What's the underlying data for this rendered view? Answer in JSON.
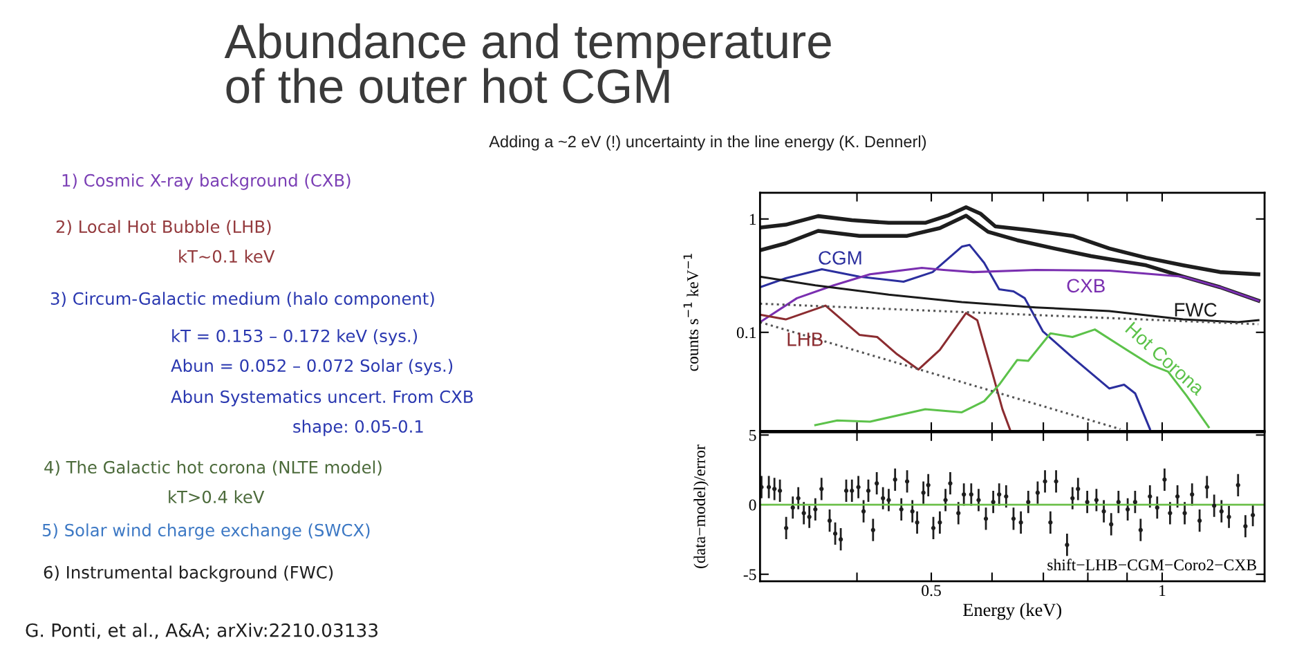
{
  "chart_data": [
    {
      "type": "line",
      "title": "Abundance and temperature\nof the outer hot CGM",
      "subtitle": "Adding a ~2 eV (!) uncertainty in the line energy (K. Dennerl)",
      "ylabel": "counts s$^{−1}$ keV$^{−1}$",
      "log": "xy",
      "xlim": [
        0.299,
        1.36
      ],
      "ylim": [
        0.0135,
        1.7
      ],
      "xticks": [
        {
          "value": 0.4,
          "label": null
        },
        0.5,
        {
          "value": 0.6,
          "label": null
        },
        {
          "value": 0.7,
          "label": null
        },
        {
          "value": 0.8,
          "label": null
        },
        {
          "value": 0.9,
          "label": null
        },
        1
      ],
      "yticks": [
        0.1,
        1
      ],
      "tick_labels": "y",
      "annotations": [
        "1) Cosmic X-ray background (CXB)",
        "2) Local Hot Bubble (LHB)",
        "kT~0.1 keV",
        "3) Circum-Galactic medium (halo component)",
        "kT = 0.153 – 0.172 keV (sys.)",
        "Abun = 0.052 – 0.072 Solar (sys.)",
        "Abun Systematics uncert. From CXB",
        "shape: 0.05-0.1",
        "4) The Galactic hot corona (NLTE model)",
        "kT>0.4 keV",
        "5) Solar wind charge exchange (SWCX)",
        "6) Instrumental background (FWC)",
        "G. Ponti, et al., A&A; arXiv:2210.03133"
      ],
      "series": [
        {
          "color": "#1e1e1e",
          "x": [
            0.299,
            0.323,
            0.356,
            0.394,
            0.44,
            0.491,
            0.525,
            0.555,
            0.58,
            0.606,
            0.669,
            0.764,
            0.853,
            0.953,
            1.065,
            1.19,
            1.335
          ],
          "values": [
            0.84,
            0.89,
            1.06,
            0.975,
            0.925,
            0.925,
            1.07,
            1.27,
            1.11,
            0.86,
            0.8,
            0.71,
            0.55,
            0.455,
            0.39,
            0.34,
            0.325
          ]
        },
        {
          "color": "#1e1e1e",
          "x": [
            0.299,
            0.323,
            0.356,
            0.403,
            0.465,
            0.513,
            0.555,
            0.593,
            0.647,
            0.723,
            0.808,
            0.953,
            1.065,
            1.19,
            1.335
          ],
          "values": [
            0.53,
            0.61,
            0.785,
            0.71,
            0.71,
            0.83,
            1.07,
            0.77,
            0.65,
            0.55,
            0.47,
            0.39,
            0.31,
            0.25,
            0.19
          ]
        },
        {
          "name": "CGM",
          "color": "#2b2f9e",
          "x": [
            0.299,
            0.323,
            0.36,
            0.403,
            0.46,
            0.502,
            0.548,
            0.561,
            0.586,
            0.613,
            0.64,
            0.662,
            0.699,
            0.764,
            0.853,
            0.892,
            0.922,
            0.964
          ],
          "values": [
            0.25,
            0.3,
            0.36,
            0.31,
            0.28,
            0.34,
            0.57,
            0.59,
            0.41,
            0.24,
            0.23,
            0.2,
            0.102,
            0.06,
            0.032,
            0.0345,
            0.029,
            0.014
          ]
        },
        {
          "name": "CXB",
          "color": "#7a2fb0",
          "x": [
            0.299,
            0.334,
            0.373,
            0.416,
            0.486,
            0.519,
            0.567,
            0.684,
            0.853,
            1.065,
            1.19,
            1.335
          ],
          "values": [
            0.123,
            0.2,
            0.26,
            0.325,
            0.37,
            0.355,
            0.34,
            0.355,
            0.35,
            0.31,
            0.25,
            0.19
          ]
        },
        {
          "name": "FWC",
          "color": "#1a1a1a",
          "x": [
            0.299,
            0.353,
            0.44,
            0.548,
            0.684,
            0.853,
            1.065,
            1.256,
            1.335
          ],
          "values": [
            0.31,
            0.26,
            0.215,
            0.185,
            0.166,
            0.154,
            0.13,
            0.123,
            0.128
          ]
        },
        {
          "name": "LHB",
          "color": "#8b2c30",
          "x": [
            0.299,
            0.323,
            0.364,
            0.403,
            0.425,
            0.45,
            0.481,
            0.513,
            0.555,
            0.574,
            0.6,
            0.619,
            0.633
          ],
          "values": [
            0.143,
            0.13,
            0.172,
            0.095,
            0.091,
            0.065,
            0.047,
            0.07,
            0.148,
            0.128,
            0.045,
            0.021,
            0.014
          ]
        },
        {
          "name": "Hot Corona",
          "color": "#5cc24a",
          "x": [
            0.353,
            0.377,
            0.416,
            0.491,
            0.548,
            0.586,
            0.613,
            0.647,
            0.669,
            0.715,
            0.764,
            0.817,
            0.882,
            0.964,
            1.018,
            1.076,
            1.15
          ],
          "values": [
            0.0152,
            0.0167,
            0.0163,
            0.021,
            0.0197,
            0.0247,
            0.0345,
            0.057,
            0.056,
            0.098,
            0.091,
            0.106,
            0.076,
            0.052,
            0.045,
            0.0276,
            0.0146
          ]
        },
        {
          "color": "#555555",
          "line_style": "dotted",
          "x": [
            0.299,
            1.335
          ],
          "values": [
            0.179,
            0.118
          ]
        },
        {
          "color": "#555555",
          "line_style": "dotted",
          "x": [
            0.299,
            0.882
          ],
          "values": [
            0.123,
            0.014
          ]
        }
      ]
    },
    {
      "type": "scatter",
      "xlabel": "Energy (keV)",
      "ylabel": "(data−model)/error",
      "log": "x",
      "xlim": [
        0.299,
        1.36
      ],
      "ylim": [
        -5.5,
        5.2
      ],
      "xticks": [
        {
          "value": 0.4,
          "label": null
        },
        0.5,
        {
          "value": 0.6,
          "label": null
        },
        {
          "value": 0.7,
          "label": null
        },
        {
          "value": 0.8,
          "label": null
        },
        {
          "value": 0.9,
          "label": null
        },
        1
      ],
      "yticks": [
        -5,
        0,
        5
      ],
      "marker": "circle",
      "color": "#1e1e1e",
      "annotations": [
        "shift−LHB−CGM−Coro2−CXB"
      ],
      "ref_lines": [
        {
          "axis": "y",
          "value": 0,
          "color": "#6cc04a"
        }
      ],
      "x": [
        0.3003,
        0.307,
        0.3122,
        0.3174,
        0.3234,
        0.3299,
        0.3354,
        0.341,
        0.3467,
        0.353,
        0.3596,
        0.3685,
        0.3747,
        0.381,
        0.3873,
        0.394,
        0.4017,
        0.408,
        0.4139,
        0.4198,
        0.4245,
        0.4325,
        0.44,
        0.4485,
        0.457,
        0.465,
        0.4724,
        0.4792,
        0.4883,
        0.4955,
        0.5031,
        0.513,
        0.5218,
        0.5293,
        0.5424,
        0.5514,
        0.5637,
        0.5763,
        0.5891,
        0.6022,
        0.613,
        0.626,
        0.64,
        0.6543,
        0.669,
        0.6881,
        0.7035,
        0.715,
        0.7273,
        0.7516,
        0.764,
        0.7768,
        0.7986,
        0.8209,
        0.8393,
        0.8581,
        0.8771,
        0.9017,
        0.922,
        0.9374,
        0.964,
        0.9852,
        1.0072,
        1.024,
        1.047,
        1.07,
        1.094,
        1.119,
        1.144,
        1.169,
        1.195,
        1.222,
        1.256,
        1.284,
        1.313
      ],
      "values": [
        1.26,
        1.26,
        1.13,
        1.0,
        -1.68,
        -0.21,
        0.46,
        -0.61,
        -0.88,
        -0.34,
        1.13,
        -1.15,
        -2.08,
        -2.49,
        1.0,
        1.0,
        1.26,
        -0.48,
        1.0,
        -1.82,
        1.53,
        0.46,
        0.33,
        1.8,
        -0.34,
        1.67,
        -0.48,
        -1.28,
        0.86,
        1.4,
        -1.68,
        -1.28,
        0.33,
        1.53,
        -0.61,
        0.73,
        0.73,
        0.33,
        -1.01,
        0.19,
        0.73,
        0.59,
        -1.01,
        -1.28,
        0.19,
        0.86,
        1.67,
        -1.28,
        1.67,
        -2.89,
        0.46,
        1.13,
        0.19,
        0.33,
        -0.48,
        -1.41,
        0.19,
        -0.34,
        0.19,
        -1.82,
        0.59,
        -0.21,
        1.8,
        -0.61,
        0.59,
        -0.61,
        0.73,
        -1.15,
        1.26,
        -0.08,
        -0.48,
        -0.88,
        1.4,
        -1.55,
        -0.75
      ],
      "errors": [
        0.8,
        0.8,
        0.8,
        0.8,
        0.8,
        0.8,
        0.8,
        0.8,
        0.8,
        0.8,
        0.8,
        0.8,
        0.8,
        0.8,
        0.8,
        0.8,
        0.8,
        0.8,
        0.8,
        0.8,
        0.8,
        0.8,
        0.8,
        0.8,
        0.8,
        0.8,
        0.8,
        0.8,
        0.8,
        0.8,
        0.8,
        0.8,
        0.8,
        0.8,
        0.8,
        0.8,
        0.8,
        0.8,
        0.8,
        0.8,
        0.8,
        0.8,
        0.8,
        0.8,
        0.8,
        0.8,
        0.8,
        0.8,
        0.8,
        0.8,
        0.8,
        0.8,
        0.8,
        0.8,
        0.8,
        0.8,
        0.8,
        0.8,
        0.8,
        0.8,
        0.8,
        0.8,
        0.8,
        0.8,
        0.8,
        0.8,
        0.8,
        0.8,
        0.8,
        0.8,
        0.8,
        0.8,
        0.8,
        0.8,
        0.8
      ]
    }
  ]
}
